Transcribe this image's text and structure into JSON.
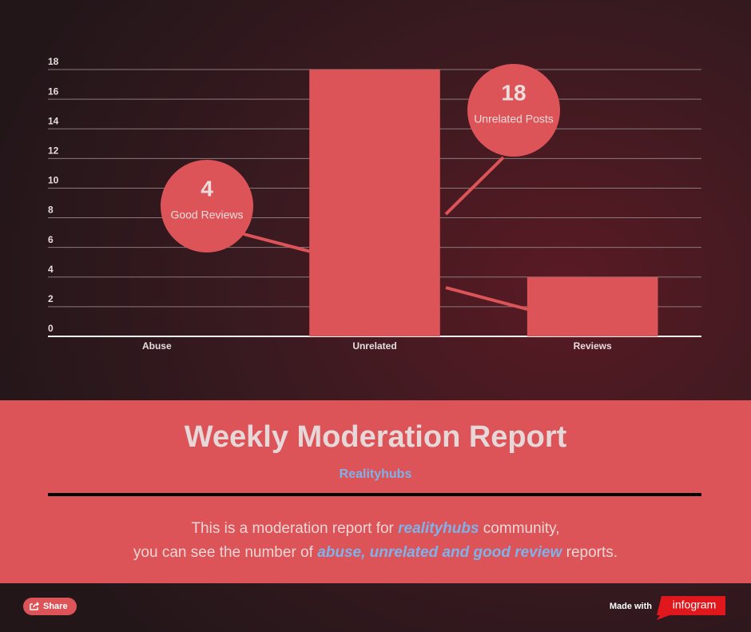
{
  "chart_data": {
    "type": "bar",
    "categories": [
      "Abuse",
      "Unrelated",
      "Reviews"
    ],
    "values": [
      0,
      18,
      4
    ],
    "color": "#dc5458",
    "ylim": [
      0,
      18
    ],
    "yticks": [
      0,
      2,
      4,
      6,
      8,
      10,
      12,
      14,
      16,
      18
    ],
    "grid": true,
    "annotations": [
      {
        "value": 4,
        "label": "Good Reviews"
      },
      {
        "value": 18,
        "label": "Unrelated Posts"
      }
    ]
  },
  "header": {
    "title": "Weekly Moderation Report",
    "subtitle": "Realityhubs"
  },
  "description": [
    [
      {
        "text": "This is a moderation report for "
      },
      {
        "text": "realityhubs",
        "emphasis": true
      },
      {
        "text": " community,"
      }
    ],
    [
      {
        "text": "you can see the number of "
      },
      {
        "text": "abuse, unrelated and good review",
        "emphasis": true
      },
      {
        "text": " reports."
      }
    ]
  ],
  "footer": {
    "share": "Share",
    "made_with": "Made with",
    "brand": "infogram"
  }
}
